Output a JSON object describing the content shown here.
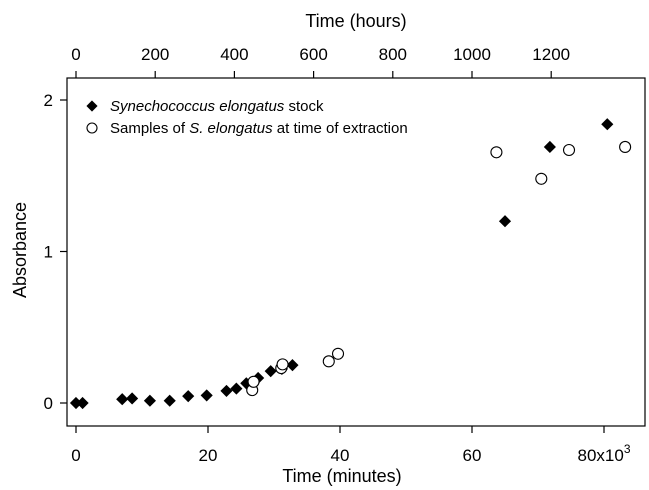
{
  "chart_data": {
    "type": "scatter",
    "xlabel": "Time (minutes)",
    "ylabel": "Absorbance",
    "x2label": "Time (hours)",
    "xlim": [
      -1000,
      85000
    ],
    "ylim": [
      -0.15,
      2.05
    ],
    "x2lim": [
      -16.667,
      1416.667
    ],
    "xticks": [
      0,
      20000,
      40000,
      60000,
      80000
    ],
    "xtick_labels": [
      "0",
      "20",
      "40",
      "60",
      "80x10"
    ],
    "xtick_exponent": "3",
    "yticks": [
      0,
      1,
      2
    ],
    "ytick_labels": [
      "0",
      "1",
      "2"
    ],
    "x2ticks": [
      0,
      200,
      400,
      600,
      800,
      1000,
      1200
    ],
    "x2tick_labels": [
      "0",
      "200",
      "400",
      "600",
      "800",
      "1000",
      "1200"
    ],
    "grid": false,
    "legend_position": "top-left",
    "series": [
      {
        "name_parts": [
          {
            "text": "Synechococcus elongatus",
            "italic": true
          },
          {
            "text": " stock",
            "italic": false
          }
        ],
        "marker": "filled-diamond",
        "color": "#000000",
        "points": [
          {
            "x": 0,
            "y": 0.0
          },
          {
            "x": 1000,
            "y": 0.0
          },
          {
            "x": 7000,
            "y": 0.025
          },
          {
            "x": 8500,
            "y": 0.03
          },
          {
            "x": 11200,
            "y": 0.015
          },
          {
            "x": 14200,
            "y": 0.015
          },
          {
            "x": 17000,
            "y": 0.045
          },
          {
            "x": 19800,
            "y": 0.05
          },
          {
            "x": 22800,
            "y": 0.08
          },
          {
            "x": 24300,
            "y": 0.095
          },
          {
            "x": 25800,
            "y": 0.13
          },
          {
            "x": 27600,
            "y": 0.165
          },
          {
            "x": 29500,
            "y": 0.21
          },
          {
            "x": 31200,
            "y": 0.225
          },
          {
            "x": 32800,
            "y": 0.25
          },
          {
            "x": 65000,
            "y": 1.2
          },
          {
            "x": 71800,
            "y": 1.69
          },
          {
            "x": 80500,
            "y": 1.84
          }
        ]
      },
      {
        "name_parts": [
          {
            "text": "Samples of ",
            "italic": false
          },
          {
            "text": "S. elongatus",
            "italic": true
          },
          {
            "text": " at time of extraction",
            "italic": false
          }
        ],
        "marker": "open-circle",
        "color": "#000000",
        "points": [
          {
            "x": 26700,
            "y": 0.085
          },
          {
            "x": 26900,
            "y": 0.14
          },
          {
            "x": 31100,
            "y": 0.23
          },
          {
            "x": 31300,
            "y": 0.255
          },
          {
            "x": 38300,
            "y": 0.275
          },
          {
            "x": 39700,
            "y": 0.325
          },
          {
            "x": 63700,
            "y": 1.655
          },
          {
            "x": 70500,
            "y": 1.48
          },
          {
            "x": 74700,
            "y": 1.67
          },
          {
            "x": 83200,
            "y": 1.69
          }
        ]
      }
    ]
  }
}
